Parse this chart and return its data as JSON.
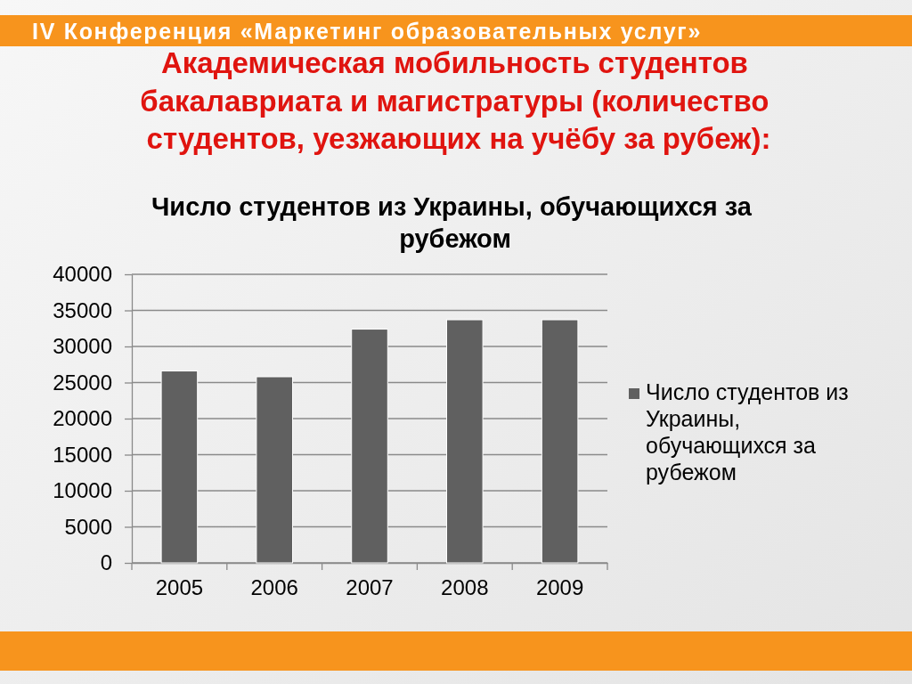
{
  "chart_data": {
    "type": "bar",
    "title": "Академическая мобильность студентов бакалавриата и магистратуры (количество студентов, уезжающих на учёбу за рубеж):",
    "subtitle": "Число студентов из Украины, обучающихся за рубежом",
    "annotations": [
      "IV Конференция «Маркетинг образовательных услуг»"
    ],
    "categories": [
      "2005",
      "2006",
      "2007",
      "2008",
      "2009"
    ],
    "series": [
      {
        "name": "Число студентов из Украины, обучающихся за рубежом",
        "color": "#606060",
        "values": [
          26600,
          25800,
          32400,
          33700,
          33700
        ]
      }
    ],
    "ylim": [
      0,
      40000
    ],
    "yticks": [
      0,
      5000,
      10000,
      15000,
      20000,
      25000,
      30000,
      35000,
      40000
    ],
    "grid": "y",
    "legend": "right"
  }
}
